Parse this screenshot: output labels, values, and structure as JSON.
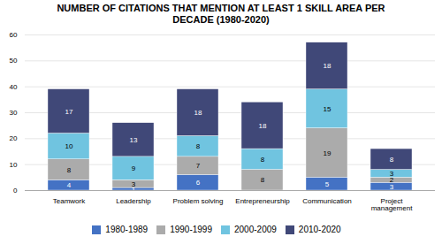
{
  "chart_data": {
    "type": "bar",
    "stacked": true,
    "title": "NUMBER OF CITATIONS THAT MENTION AT LEAST 1 SKILL AREA PER\nDECADE (1980-2020)",
    "categories": [
      "Teamwork",
      "Leadership",
      "Problem solving",
      "Entrepreneurship",
      "Communication",
      "Project\nmanagement"
    ],
    "series": [
      {
        "name": "1980-1989",
        "color": "#4472C4",
        "values": [
          4,
          1,
          6,
          0,
          5,
          3
        ]
      },
      {
        "name": "1990-1999",
        "color": "#ABABAB",
        "values": [
          8,
          3,
          7,
          8,
          19,
          2
        ]
      },
      {
        "name": "2000-2009",
        "color": "#70C4E0",
        "values": [
          10,
          9,
          8,
          8,
          15,
          3
        ]
      },
      {
        "name": "2010-2020",
        "color": "#404878",
        "values": [
          17,
          13,
          18,
          18,
          18,
          8
        ]
      }
    ],
    "ylim": [
      0,
      60
    ],
    "yticks": [
      0,
      10,
      20,
      30,
      40,
      50,
      60
    ],
    "grid": true,
    "data_labels": true,
    "legend": "bottom"
  }
}
